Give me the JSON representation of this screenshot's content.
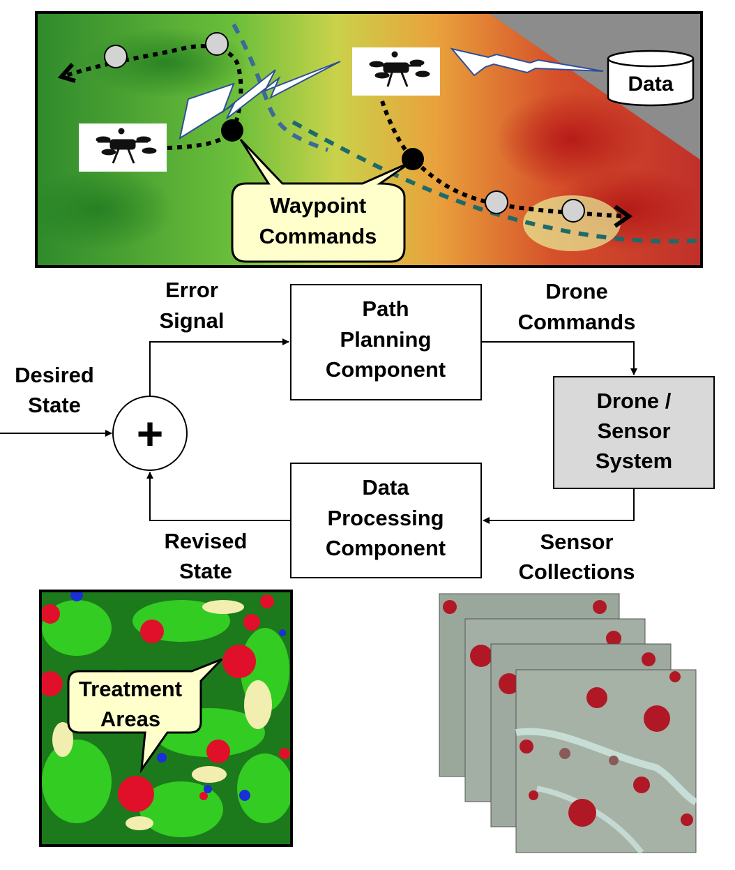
{
  "callouts": {
    "waypoint": [
      "Waypoint",
      "Commands"
    ],
    "treatment": [
      "Treatment",
      "Areas"
    ],
    "data": "Data"
  },
  "blocks": {
    "path_planning": [
      "Path",
      "Planning",
      "Component"
    ],
    "drone_system": [
      "Drone /",
      "Sensor",
      "System"
    ],
    "data_processing": [
      "Data",
      "Processing",
      "Component"
    ]
  },
  "signals": {
    "desired_state": [
      "Desired",
      "State"
    ],
    "error_signal": [
      "Error",
      "Signal"
    ],
    "drone_commands": [
      "Drone",
      "Commands"
    ],
    "sensor_collections": [
      "Sensor",
      "Collections"
    ],
    "revised_state": [
      "Revised",
      "State"
    ]
  },
  "summing_junction": "+",
  "colors": {
    "drone_box_fill": "#d9d9d9",
    "callout_fill": "#ffffcc",
    "trajectory_blue": "#2f5f8a",
    "trajectory_teal": "#1f6f6f",
    "treatment_red": "#e0102a",
    "vegetation_green": "#22b822"
  }
}
